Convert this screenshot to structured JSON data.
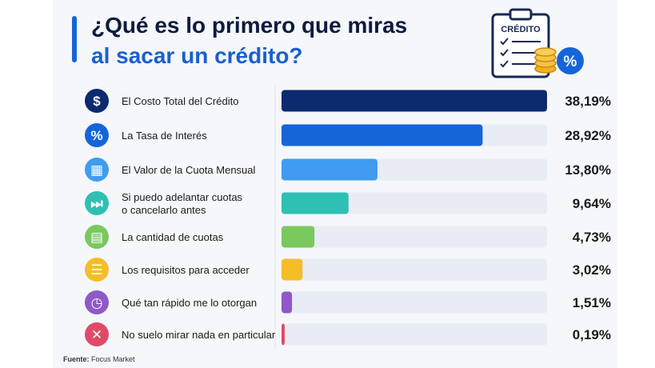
{
  "header": {
    "title_line1": "¿Qué es lo primero que miras",
    "title_line2": "al sacar un crédito?",
    "clipart_label": "CRÉDITO",
    "clipart_badge": "%"
  },
  "footer": {
    "source_label": "Fuente:",
    "source_value": "Focus Market"
  },
  "colors": {
    "title_dark": "#0d1a40",
    "title_blue": "#1a5fd0",
    "track": "#e8ecf4",
    "card": "#f5f7fb"
  },
  "chart_data": {
    "type": "bar",
    "orientation": "horizontal",
    "xlim": [
      0,
      38.19
    ],
    "categories": [
      [
        "El Costo Total del Crédito"
      ],
      [
        "La Tasa de Interés"
      ],
      [
        "El Valor de la Cuota Mensual"
      ],
      [
        "Si puedo adelantar cuotas",
        "o cancelarlo antes"
      ],
      [
        "La cantidad de cuotas"
      ],
      [
        "Los requisitos para acceder"
      ],
      [
        "Qué tan rápido me lo otorgan"
      ],
      [
        "No suelo mirar nada en particular"
      ]
    ],
    "values": [
      38.19,
      28.92,
      13.8,
      9.64,
      4.73,
      3.02,
      1.51,
      0.19
    ],
    "value_labels": [
      "38,19%",
      "28,92%",
      "13,80%",
      "9,64%",
      "4,73%",
      "3,02%",
      "1,51%",
      "0,19%"
    ],
    "bar_colors": [
      "#0b2a6f",
      "#1565d8",
      "#3f9cf0",
      "#2fbfb3",
      "#79c95e",
      "#f6bd2b",
      "#8f59c8",
      "#e04a6a"
    ],
    "icons": [
      {
        "name": "dollar-icon",
        "glyph": "$"
      },
      {
        "name": "percent-icon",
        "glyph": "%"
      },
      {
        "name": "calculator-icon",
        "glyph": "▦"
      },
      {
        "name": "fast-forward-icon",
        "glyph": "⏭"
      },
      {
        "name": "calendar-icon",
        "glyph": "▤"
      },
      {
        "name": "clipboard-icon",
        "glyph": "☰"
      },
      {
        "name": "clock-icon",
        "glyph": "◷"
      },
      {
        "name": "x-icon",
        "glyph": "✕"
      }
    ]
  }
}
